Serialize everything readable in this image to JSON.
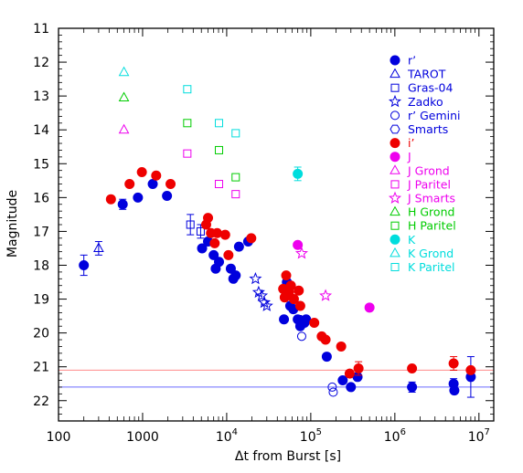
{
  "chart_data": {
    "type": "scatter",
    "title": "",
    "xlabel": "Δt from Burst [s]",
    "ylabel": "Magnitude",
    "x_scale": "log",
    "xlim": [
      100,
      15000000
    ],
    "ylim": [
      11,
      22.6
    ],
    "y_inverted": true,
    "grid": false,
    "legend_position": "top-right",
    "x_ticks": [
      {
        "v": 100,
        "label": "100"
      },
      {
        "v": 1000,
        "label": "1000"
      },
      {
        "v": 10000,
        "base": "10",
        "exp": "4"
      },
      {
        "v": 100000,
        "base": "10",
        "exp": "5"
      },
      {
        "v": 1000000,
        "base": "10",
        "exp": "6"
      },
      {
        "v": 10000000,
        "base": "10",
        "exp": "7"
      }
    ],
    "y_ticks": [
      11,
      12,
      13,
      14,
      15,
      16,
      17,
      18,
      19,
      20,
      21,
      22
    ],
    "hlines": [
      {
        "y": 21.1,
        "color": "#ff8a8a"
      },
      {
        "y": 21.6,
        "color": "#6b6bff"
      }
    ],
    "series": [
      {
        "name": "r’",
        "marker": "dot",
        "color": "#0000dd",
        "points": [
          [
            200,
            18.0,
            0.3
          ],
          [
            580,
            16.2,
            0.15
          ],
          [
            880,
            16.0,
            0
          ],
          [
            1320,
            15.6,
            0
          ],
          [
            1950,
            15.95,
            0
          ],
          [
            5100,
            17.5,
            0
          ],
          [
            6000,
            17.3,
            0
          ],
          [
            7000,
            17.7,
            0
          ],
          [
            7400,
            18.1,
            0
          ],
          [
            8100,
            17.9,
            0
          ],
          [
            11200,
            18.1,
            0
          ],
          [
            12000,
            18.4,
            0
          ],
          [
            12800,
            18.3,
            0
          ],
          [
            14000,
            17.45,
            0
          ],
          [
            18000,
            17.3,
            0
          ],
          [
            48000,
            19.6,
            0
          ],
          [
            52000,
            18.5,
            0
          ],
          [
            57000,
            19.2,
            0
          ],
          [
            62000,
            19.3,
            0
          ],
          [
            70000,
            19.6,
            0
          ],
          [
            75000,
            19.8,
            0
          ],
          [
            84000,
            19.7,
            0
          ],
          [
            88000,
            19.6,
            0
          ],
          [
            155000,
            20.7,
            0
          ],
          [
            240000,
            21.4,
            0
          ],
          [
            300000,
            21.6,
            0
          ],
          [
            360000,
            21.3,
            0
          ],
          [
            1600000,
            21.6,
            0.15
          ],
          [
            5000000,
            21.5,
            0.15
          ],
          [
            5100000,
            21.7,
            0
          ],
          [
            8000000,
            21.3,
            0.6
          ]
        ]
      },
      {
        "name": "TAROT",
        "marker": "triangle",
        "color": "#0000dd",
        "points": [
          [
            300,
            17.5,
            0.2
          ]
        ]
      },
      {
        "name": "Gras-04",
        "marker": "square",
        "color": "#0000dd",
        "points": [
          [
            3700,
            16.8,
            0.3
          ],
          [
            4900,
            17.0,
            0.2
          ]
        ]
      },
      {
        "name": "Zadko",
        "marker": "star",
        "color": "#0000dd",
        "points": [
          [
            22000,
            18.4,
            0
          ],
          [
            24000,
            18.8,
            0
          ],
          [
            26000,
            18.9,
            0
          ],
          [
            28000,
            19.1,
            0
          ],
          [
            30000,
            19.2,
            0
          ]
        ]
      },
      {
        "name": "r’ Gemini",
        "marker": "circle",
        "color": "#0000dd",
        "points": [
          [
            78000,
            20.1,
            0
          ],
          [
            180000,
            21.6,
            0
          ],
          [
            185000,
            21.75,
            0
          ]
        ]
      },
      {
        "name": "Smarts",
        "marker": "hexagon",
        "color": "#0000dd",
        "points": [
          [
            73000,
            19.6,
            0
          ]
        ]
      },
      {
        "name": "i’",
        "marker": "dot",
        "color": "#ee0000",
        "points": [
          [
            420,
            16.05,
            0
          ],
          [
            700,
            15.6,
            0
          ],
          [
            980,
            15.25,
            0
          ],
          [
            1450,
            15.35,
            0
          ],
          [
            2150,
            15.6,
            0
          ],
          [
            5700,
            16.8,
            0
          ],
          [
            6000,
            16.6,
            0
          ],
          [
            6500,
            17.05,
            0
          ],
          [
            7200,
            17.35,
            0
          ],
          [
            7700,
            17.05,
            0
          ],
          [
            9600,
            17.1,
            0
          ],
          [
            10500,
            17.7,
            0
          ],
          [
            19600,
            17.2,
            0
          ],
          [
            47000,
            18.7,
            0
          ],
          [
            49000,
            18.95,
            0
          ],
          [
            51000,
            18.3,
            0
          ],
          [
            55000,
            18.8,
            0
          ],
          [
            58000,
            18.6,
            0
          ],
          [
            63000,
            19.0,
            0
          ],
          [
            72000,
            18.75,
            0
          ],
          [
            75000,
            19.2,
            0
          ],
          [
            110000,
            19.7,
            0
          ],
          [
            135000,
            20.1,
            0
          ],
          [
            150000,
            20.2,
            0
          ],
          [
            230000,
            20.4,
            0
          ],
          [
            290000,
            21.2,
            0
          ],
          [
            370000,
            21.05,
            0.2
          ],
          [
            1600000,
            21.05,
            0
          ],
          [
            5000000,
            20.9,
            0.2
          ],
          [
            8000000,
            21.1,
            0
          ]
        ]
      },
      {
        "name": "J",
        "marker": "dot",
        "color": "#ee00ee",
        "points": [
          [
            70000,
            17.4,
            0
          ],
          [
            500000,
            19.25,
            0
          ]
        ]
      },
      {
        "name": "J Grond",
        "marker": "triangle",
        "color": "#ee00ee",
        "points": [
          [
            600,
            14.0,
            0
          ]
        ]
      },
      {
        "name": "J Paritel",
        "marker": "square",
        "color": "#ee00ee",
        "points": [
          [
            3400,
            14.7,
            0
          ],
          [
            8100,
            15.6,
            0
          ],
          [
            12800,
            15.9,
            0
          ]
        ]
      },
      {
        "name": "J Smarts",
        "marker": "star",
        "color": "#ee00ee",
        "points": [
          [
            78000,
            17.65,
            0
          ],
          [
            150000,
            18.9,
            0
          ]
        ]
      },
      {
        "name": "H Grond",
        "marker": "triangle",
        "color": "#00cc00",
        "points": [
          [
            600,
            13.05,
            0
          ]
        ]
      },
      {
        "name": "H Paritel",
        "marker": "square",
        "color": "#00cc00",
        "points": [
          [
            3400,
            13.8,
            0
          ],
          [
            8100,
            14.6,
            0
          ],
          [
            12800,
            15.4,
            0
          ]
        ]
      },
      {
        "name": "K",
        "marker": "dot",
        "color": "#00dddd",
        "points": [
          [
            70000,
            15.3,
            0.2
          ]
        ]
      },
      {
        "name": "K Grond",
        "marker": "triangle",
        "color": "#00dddd",
        "points": [
          [
            600,
            12.3,
            0
          ]
        ]
      },
      {
        "name": "K Paritel",
        "marker": "square",
        "color": "#00dddd",
        "points": [
          [
            3400,
            12.8,
            0
          ],
          [
            8100,
            13.8,
            0
          ],
          [
            12800,
            14.1,
            0
          ]
        ]
      }
    ]
  }
}
